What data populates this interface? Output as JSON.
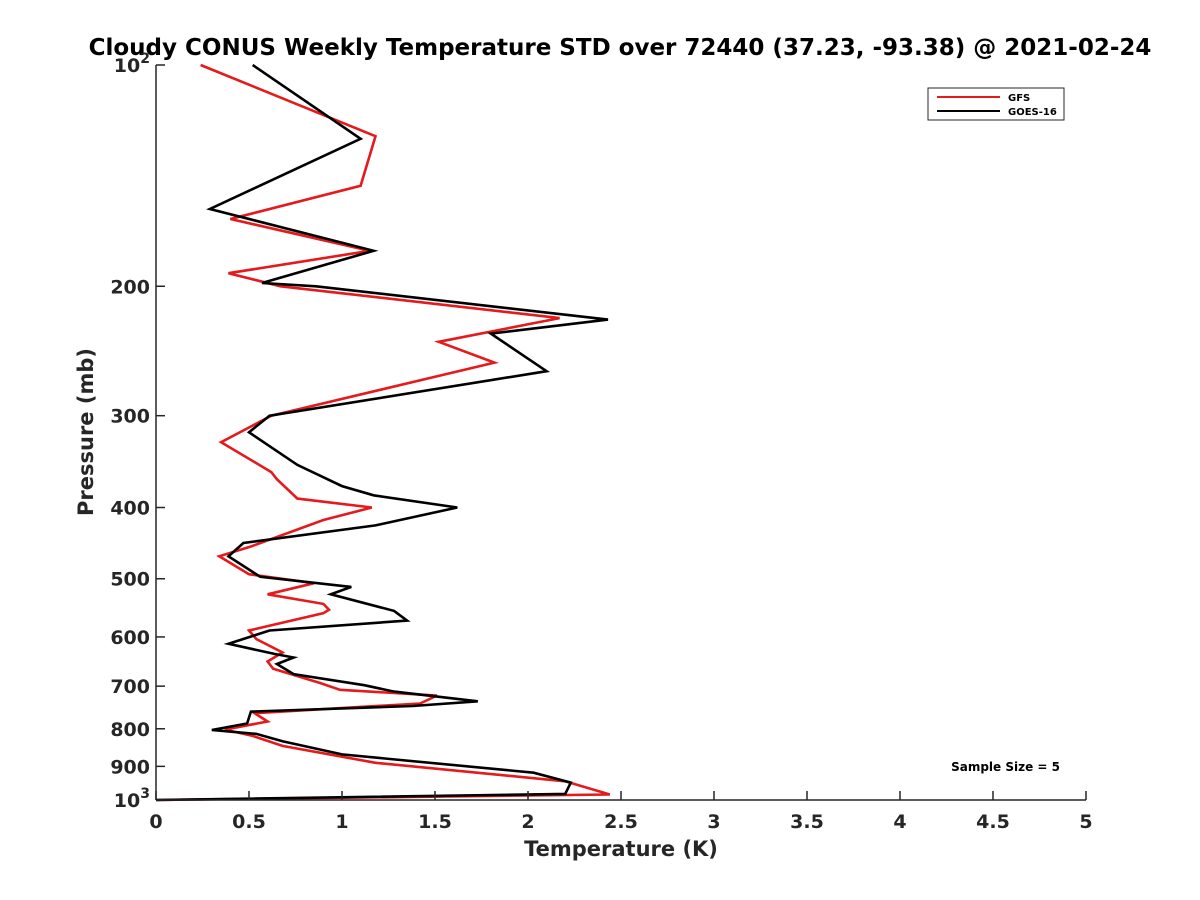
{
  "chart_data": {
    "type": "line",
    "title": "Cloudy CONUS Weekly Temperature STD over 72440 (37.23, -93.38) @ 2021-02-24",
    "xlabel": "Temperature (K)",
    "ylabel": "Pressure (mb)",
    "xlim": [
      0,
      5
    ],
    "ylim": [
      100,
      1000
    ],
    "y_scale": "log",
    "y_reversed": true,
    "x_ticks": [
      "0",
      "0.5",
      "1",
      "1.5",
      "2",
      "2.5",
      "3",
      "3.5",
      "4",
      "4.5",
      "5"
    ],
    "y_ticks": [
      {
        "value": 100,
        "base": "10",
        "exp": "2"
      },
      {
        "value": 200,
        "label": "200"
      },
      {
        "value": 300,
        "label": "300"
      },
      {
        "value": 400,
        "label": "400"
      },
      {
        "value": 500,
        "label": "500"
      },
      {
        "value": 600,
        "label": "600"
      },
      {
        "value": 700,
        "label": "700"
      },
      {
        "value": 800,
        "label": "800"
      },
      {
        "value": 900,
        "label": "900"
      },
      {
        "value": 1000,
        "base": "10",
        "exp": "3"
      }
    ],
    "grid": false,
    "legend_position": "top-right",
    "annotation": "Sample Size = 5",
    "series": [
      {
        "name": "GFS",
        "color": "#e41a1c",
        "points": [
          [
            0.24,
            100
          ],
          [
            1.18,
            125
          ],
          [
            1.1,
            146
          ],
          [
            0.4,
            162
          ],
          [
            1.15,
            179
          ],
          [
            0.39,
            192
          ],
          [
            0.67,
            200
          ],
          [
            2.17,
            221
          ],
          [
            1.52,
            238
          ],
          [
            1.82,
            254
          ],
          [
            0.62,
            300
          ],
          [
            0.35,
            326
          ],
          [
            0.62,
            358
          ],
          [
            0.65,
            366
          ],
          [
            0.76,
            389
          ],
          [
            1.16,
            400
          ],
          [
            0.9,
            416
          ],
          [
            0.51,
            452
          ],
          [
            0.34,
            466
          ],
          [
            0.5,
            493
          ],
          [
            0.85,
            507
          ],
          [
            0.6,
            525
          ],
          [
            0.9,
            541
          ],
          [
            0.93,
            551
          ],
          [
            0.9,
            557
          ],
          [
            0.5,
            588
          ],
          [
            0.54,
            604
          ],
          [
            0.68,
            630
          ],
          [
            0.6,
            648
          ],
          [
            0.63,
            663
          ],
          [
            0.88,
            693
          ],
          [
            0.99,
            708
          ],
          [
            1.51,
            721
          ],
          [
            1.42,
            739
          ],
          [
            0.53,
            762
          ],
          [
            0.6,
            782
          ],
          [
            0.37,
            802
          ],
          [
            0.52,
            818
          ],
          [
            0.68,
            844
          ],
          [
            1.18,
            890
          ],
          [
            2.2,
            943
          ],
          [
            2.44,
            983
          ],
          [
            0,
            1000
          ]
        ]
      },
      {
        "name": "GOES-16",
        "color": "#000000",
        "points": [
          [
            0.52,
            100
          ],
          [
            1.1,
            126
          ],
          [
            0.29,
            157
          ],
          [
            1.17,
            179
          ],
          [
            0.57,
            198
          ],
          [
            0.86,
            200
          ],
          [
            2.43,
            222
          ],
          [
            1.8,
            232
          ],
          [
            2.1,
            261
          ],
          [
            0.61,
            300
          ],
          [
            0.5,
            316
          ],
          [
            0.76,
            350
          ],
          [
            1.0,
            374
          ],
          [
            1.17,
            385
          ],
          [
            1.62,
            400
          ],
          [
            1.18,
            423
          ],
          [
            0.47,
            447
          ],
          [
            0.39,
            466
          ],
          [
            0.56,
            497
          ],
          [
            1.05,
            513
          ],
          [
            0.94,
            525
          ],
          [
            1.28,
            553
          ],
          [
            1.35,
            570
          ],
          [
            0.61,
            588
          ],
          [
            0.39,
            613
          ],
          [
            0.64,
            633
          ],
          [
            0.74,
            640
          ],
          [
            0.65,
            653
          ],
          [
            0.74,
            674
          ],
          [
            1.12,
            698
          ],
          [
            1.28,
            712
          ],
          [
            1.73,
            734
          ],
          [
            1.38,
            745
          ],
          [
            0.51,
            758
          ],
          [
            0.49,
            787
          ],
          [
            0.3,
            803
          ],
          [
            0.54,
            813
          ],
          [
            0.68,
            832
          ],
          [
            1.0,
            867
          ],
          [
            2.03,
            918
          ],
          [
            2.23,
            947
          ],
          [
            2.2,
            981
          ],
          [
            0,
            1000
          ]
        ]
      }
    ]
  }
}
